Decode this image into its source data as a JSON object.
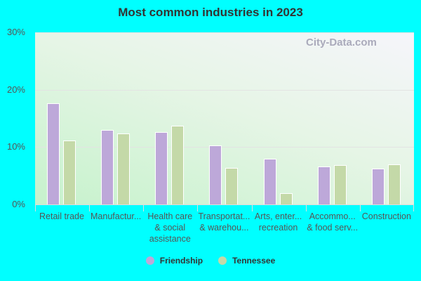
{
  "chart_data": {
    "type": "bar",
    "title": "Most common industries in 2023",
    "xlabel": "",
    "ylabel": "",
    "ylim": [
      0,
      30
    ],
    "yticks": [
      "0%",
      "10%",
      "20%",
      "30%"
    ],
    "grid": true,
    "legend_position": "bottom",
    "categories": [
      "Retail trade",
      "Manufactur...",
      "Health care\n& social\nassistance",
      "Transportat...\n& warehou...",
      "Arts, enter...\nrecreation",
      "Accommo...\n& food serv...",
      "Construction"
    ],
    "series": [
      {
        "name": "Friendship",
        "color": "#bda8d9",
        "values": [
          17.6,
          13.0,
          12.6,
          10.3,
          8.0,
          6.6,
          6.2
        ]
      },
      {
        "name": "Tennessee",
        "color": "#c4d9a8",
        "values": [
          11.1,
          12.4,
          13.7,
          6.4,
          2.0,
          6.9,
          7.0
        ]
      }
    ]
  },
  "watermark": "City-Data.com"
}
